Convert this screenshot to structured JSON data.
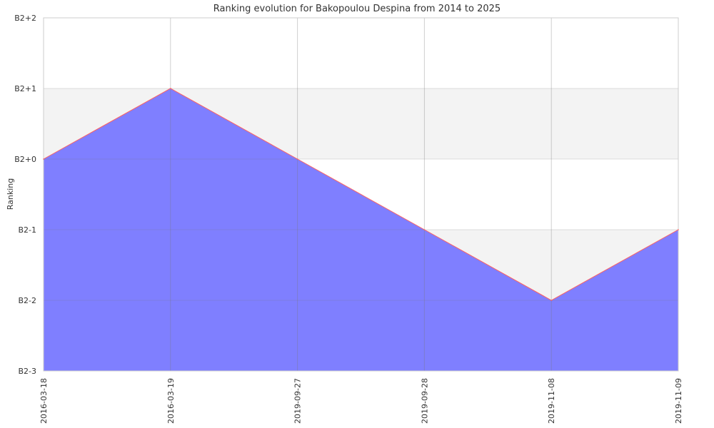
{
  "chart_data": {
    "type": "area",
    "title": "Ranking evolution for Bakopoulou Despina from 2014 to 2025",
    "xlabel": "",
    "ylabel": "Ranking",
    "x": [
      "2016-03-18",
      "2016-03-19",
      "2019-09-27",
      "2019-09-28",
      "2019-11-08",
      "2019-11-09"
    ],
    "y_ticks": [
      "B2-3",
      "B2-2",
      "B2-1",
      "B2+0",
      "B2+1",
      "B2+2"
    ],
    "series": [
      {
        "values": [
          "B2+0",
          "B2+1",
          "B2+0",
          "B2-1",
          "B2-2",
          "B2-1"
        ]
      }
    ],
    "grid": true,
    "alternating_bands": true,
    "colors": {
      "fill": "#7f7fff",
      "line": "#ff6060",
      "band": "#f3f3f3",
      "grid": "#c8c8c8"
    }
  }
}
